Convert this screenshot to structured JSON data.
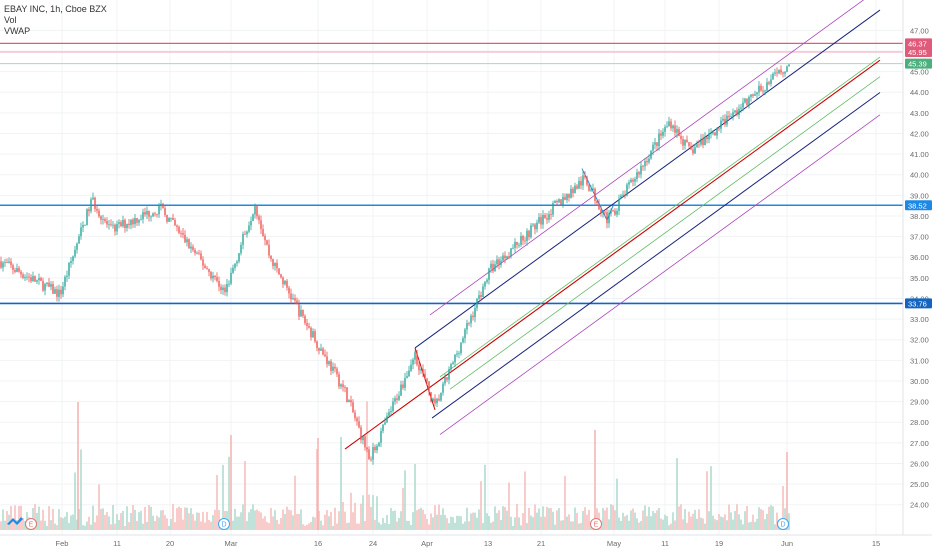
{
  "header": {
    "symbol_line": "EBAY INC, 1h, Cboe BZX",
    "indicator_vol": "Vol",
    "indicator_vwap": "VWAP"
  },
  "price_axis": {
    "min": 23.5,
    "max": 47.6,
    "ticks": [
      "47.00",
      "46.00",
      "45.00",
      "44.00",
      "43.00",
      "42.00",
      "41.00",
      "40.00",
      "39.00",
      "38.00",
      "37.00",
      "36.00",
      "35.00",
      "34.00",
      "33.00",
      "32.00",
      "31.00",
      "30.00",
      "29.00",
      "28.00",
      "27.00",
      "26.00",
      "25.00",
      "24.00"
    ],
    "tags": [
      {
        "label": "46.37",
        "value": 46.37,
        "color": "#e05a7a"
      },
      {
        "label": "45.95",
        "value": 45.95,
        "color": "#e05a7a"
      },
      {
        "label": "45.39",
        "value": 45.39,
        "color": "#4caf7d"
      },
      {
        "label": "38.52",
        "value": 38.52,
        "color": "#1e88e5"
      },
      {
        "label": "33.76",
        "value": 33.76,
        "color": "#1565c0"
      }
    ]
  },
  "time_axis": {
    "labels": [
      "Feb",
      "11",
      "20",
      "Mar",
      "16",
      "24",
      "Apr",
      "13",
      "21",
      "May",
      "11",
      "19",
      "Jun",
      "15"
    ]
  },
  "events": [
    {
      "label": "E",
      "kind": "earnings",
      "color": "#e57373"
    },
    {
      "label": "D",
      "kind": "dividend",
      "color": "#42a5f5"
    },
    {
      "label": "E",
      "kind": "earnings",
      "color": "#e57373"
    },
    {
      "label": "D",
      "kind": "dividend",
      "color": "#42a5f5"
    }
  ],
  "colors": {
    "up": "#26a69a",
    "down": "#ef5350",
    "vol_up": "#a5d6c8",
    "vol_down": "#f4b6b4",
    "support": "#1e88e5",
    "resistance_pink": "#e05a7a",
    "median": "#cc0000",
    "channel_blue": "#1a237e",
    "channel_green": "#66bb6a",
    "channel_purple": "#ab47bc"
  },
  "chart_data": {
    "type": "candlestick",
    "title": "EBAY INC, 1h, Cboe BZX",
    "ylim": [
      23.5,
      47.6
    ],
    "horizontal_levels": [
      46.37,
      45.95,
      45.39,
      38.52,
      33.76
    ],
    "price_path": [
      {
        "t": "late Jan",
        "close": 35.8
      },
      {
        "t": "Feb 5",
        "close": 34.2
      },
      {
        "t": "Feb 7",
        "close": 38.8
      },
      {
        "t": "Feb 11",
        "close": 37.3
      },
      {
        "t": "Feb 20",
        "close": 38.4
      },
      {
        "t": "Mar 2",
        "close": 34.3
      },
      {
        "t": "Mar 6",
        "close": 38.6
      },
      {
        "t": "Mar 12",
        "close": 36.0
      },
      {
        "t": "Mar 16",
        "close": 33.3
      },
      {
        "t": "Mar 20",
        "close": 29.5
      },
      {
        "t": "Mar 23",
        "close": 26.2
      },
      {
        "t": "Mar 31",
        "close": 31.3
      },
      {
        "t": "Apr 3",
        "close": 28.7
      },
      {
        "t": "Apr 13",
        "close": 35.4
      },
      {
        "t": "Apr 21",
        "close": 38.7
      },
      {
        "t": "Apr 27",
        "close": 39.8
      },
      {
        "t": "Apr 30",
        "close": 37.8
      },
      {
        "t": "May 11",
        "close": 42.6
      },
      {
        "t": "May 14",
        "close": 41.1
      },
      {
        "t": "May 26",
        "close": 43.9
      },
      {
        "t": "Jun 1",
        "close": 45.39
      }
    ]
  }
}
